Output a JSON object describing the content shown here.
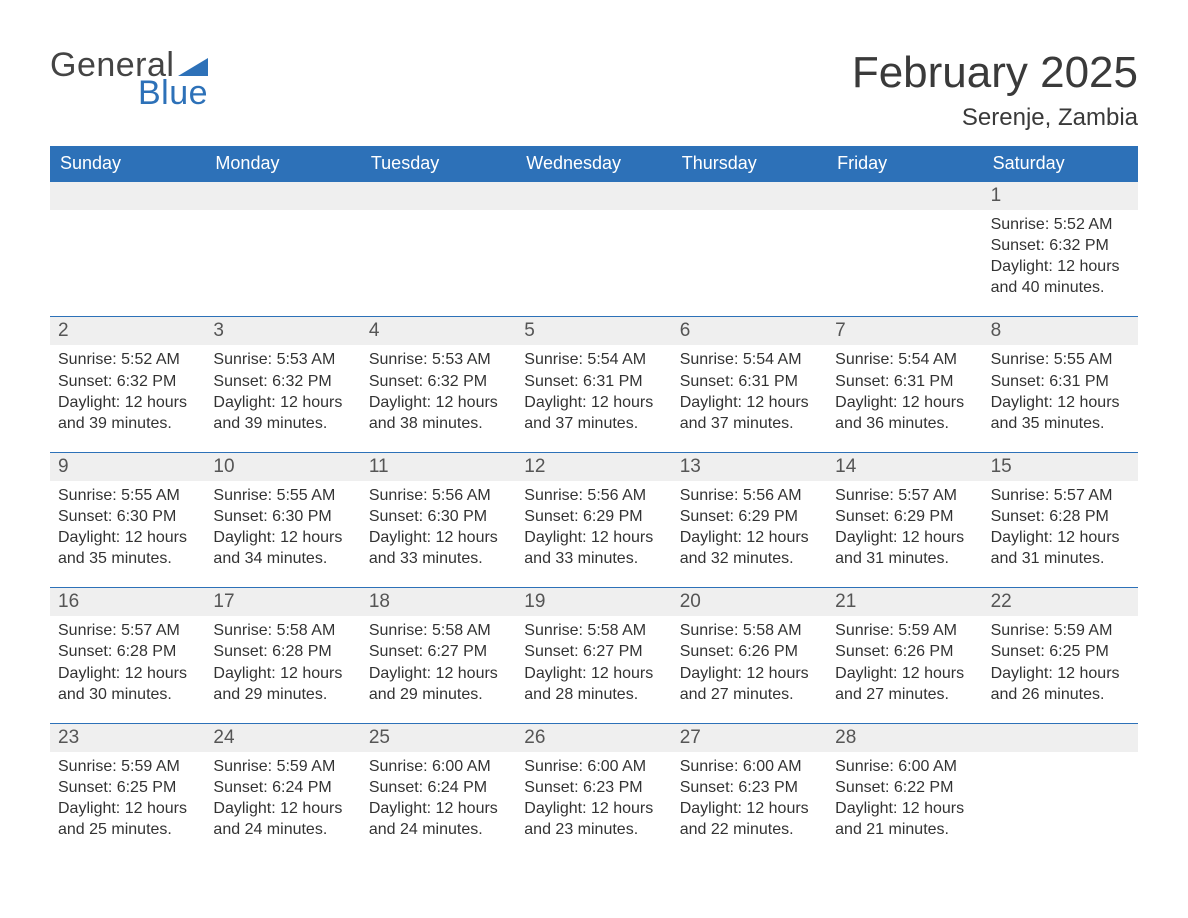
{
  "logo": {
    "text_general": "General",
    "text_blue": "Blue",
    "triangle_color": "#2d71b8"
  },
  "colors": {
    "header_bg": "#2d71b8",
    "header_text": "#ffffff",
    "daynum_bg": "#efefef",
    "daynum_text": "#555555",
    "body_text": "#333333",
    "week_divider": "#2d71b8",
    "background": "#ffffff"
  },
  "typography": {
    "month_title_fontsize": 44,
    "location_fontsize": 24,
    "dow_fontsize": 18,
    "daynum_fontsize": 19,
    "detail_fontsize": 16,
    "font_family": "Arial"
  },
  "header": {
    "month_title": "February 2025",
    "location": "Serenje, Zambia"
  },
  "days_of_week": [
    "Sunday",
    "Monday",
    "Tuesday",
    "Wednesday",
    "Thursday",
    "Friday",
    "Saturday"
  ],
  "calendar": {
    "type": "table",
    "columns": 7,
    "weeks": [
      [
        null,
        null,
        null,
        null,
        null,
        null,
        {
          "n": "1",
          "sunrise": "5:52 AM",
          "sunset": "6:32 PM",
          "daylight": "12 hours and 40 minutes."
        }
      ],
      [
        {
          "n": "2",
          "sunrise": "5:52 AM",
          "sunset": "6:32 PM",
          "daylight": "12 hours and 39 minutes."
        },
        {
          "n": "3",
          "sunrise": "5:53 AM",
          "sunset": "6:32 PM",
          "daylight": "12 hours and 39 minutes."
        },
        {
          "n": "4",
          "sunrise": "5:53 AM",
          "sunset": "6:32 PM",
          "daylight": "12 hours and 38 minutes."
        },
        {
          "n": "5",
          "sunrise": "5:54 AM",
          "sunset": "6:31 PM",
          "daylight": "12 hours and 37 minutes."
        },
        {
          "n": "6",
          "sunrise": "5:54 AM",
          "sunset": "6:31 PM",
          "daylight": "12 hours and 37 minutes."
        },
        {
          "n": "7",
          "sunrise": "5:54 AM",
          "sunset": "6:31 PM",
          "daylight": "12 hours and 36 minutes."
        },
        {
          "n": "8",
          "sunrise": "5:55 AM",
          "sunset": "6:31 PM",
          "daylight": "12 hours and 35 minutes."
        }
      ],
      [
        {
          "n": "9",
          "sunrise": "5:55 AM",
          "sunset": "6:30 PM",
          "daylight": "12 hours and 35 minutes."
        },
        {
          "n": "10",
          "sunrise": "5:55 AM",
          "sunset": "6:30 PM",
          "daylight": "12 hours and 34 minutes."
        },
        {
          "n": "11",
          "sunrise": "5:56 AM",
          "sunset": "6:30 PM",
          "daylight": "12 hours and 33 minutes."
        },
        {
          "n": "12",
          "sunrise": "5:56 AM",
          "sunset": "6:29 PM",
          "daylight": "12 hours and 33 minutes."
        },
        {
          "n": "13",
          "sunrise": "5:56 AM",
          "sunset": "6:29 PM",
          "daylight": "12 hours and 32 minutes."
        },
        {
          "n": "14",
          "sunrise": "5:57 AM",
          "sunset": "6:29 PM",
          "daylight": "12 hours and 31 minutes."
        },
        {
          "n": "15",
          "sunrise": "5:57 AM",
          "sunset": "6:28 PM",
          "daylight": "12 hours and 31 minutes."
        }
      ],
      [
        {
          "n": "16",
          "sunrise": "5:57 AM",
          "sunset": "6:28 PM",
          "daylight": "12 hours and 30 minutes."
        },
        {
          "n": "17",
          "sunrise": "5:58 AM",
          "sunset": "6:28 PM",
          "daylight": "12 hours and 29 minutes."
        },
        {
          "n": "18",
          "sunrise": "5:58 AM",
          "sunset": "6:27 PM",
          "daylight": "12 hours and 29 minutes."
        },
        {
          "n": "19",
          "sunrise": "5:58 AM",
          "sunset": "6:27 PM",
          "daylight": "12 hours and 28 minutes."
        },
        {
          "n": "20",
          "sunrise": "5:58 AM",
          "sunset": "6:26 PM",
          "daylight": "12 hours and 27 minutes."
        },
        {
          "n": "21",
          "sunrise": "5:59 AM",
          "sunset": "6:26 PM",
          "daylight": "12 hours and 27 minutes."
        },
        {
          "n": "22",
          "sunrise": "5:59 AM",
          "sunset": "6:25 PM",
          "daylight": "12 hours and 26 minutes."
        }
      ],
      [
        {
          "n": "23",
          "sunrise": "5:59 AM",
          "sunset": "6:25 PM",
          "daylight": "12 hours and 25 minutes."
        },
        {
          "n": "24",
          "sunrise": "5:59 AM",
          "sunset": "6:24 PM",
          "daylight": "12 hours and 24 minutes."
        },
        {
          "n": "25",
          "sunrise": "6:00 AM",
          "sunset": "6:24 PM",
          "daylight": "12 hours and 24 minutes."
        },
        {
          "n": "26",
          "sunrise": "6:00 AM",
          "sunset": "6:23 PM",
          "daylight": "12 hours and 23 minutes."
        },
        {
          "n": "27",
          "sunrise": "6:00 AM",
          "sunset": "6:23 PM",
          "daylight": "12 hours and 22 minutes."
        },
        {
          "n": "28",
          "sunrise": "6:00 AM",
          "sunset": "6:22 PM",
          "daylight": "12 hours and 21 minutes."
        },
        null
      ]
    ]
  },
  "labels": {
    "sunrise_prefix": "Sunrise: ",
    "sunset_prefix": "Sunset: ",
    "daylight_prefix": "Daylight: "
  }
}
